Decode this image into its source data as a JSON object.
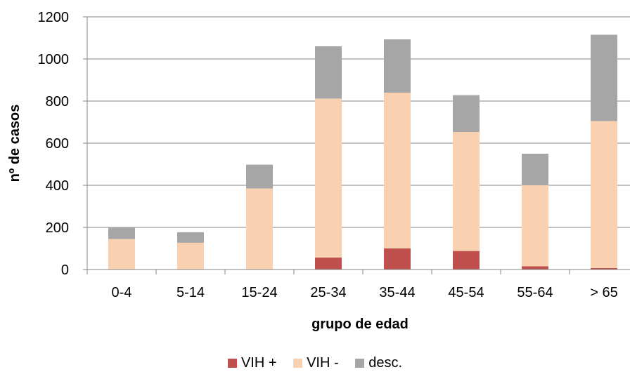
{
  "chart_data": {
    "type": "bar",
    "stacked": true,
    "title": "",
    "xlabel": "grupo de edad",
    "ylabel": "nº de casos",
    "ylim": [
      0,
      1200
    ],
    "yticks": [
      "0",
      "200",
      "400",
      "600",
      "800",
      "1000",
      "1200"
    ],
    "grid": true,
    "legend_position": "bottom",
    "categories": [
      "0-4",
      "5-14",
      "15-24",
      "25-34",
      "35-44",
      "45-54",
      "55-64",
      "> 65"
    ],
    "series": [
      {
        "name": "VIH +",
        "color": "#c0504d",
        "values": [
          0,
          0,
          0,
          57,
          100,
          88,
          15,
          7
        ]
      },
      {
        "name": "VIH -",
        "color": "#fad1b0",
        "values": [
          145,
          127,
          385,
          755,
          740,
          565,
          385,
          698
        ]
      },
      {
        "name": "desc.",
        "color": "#a6a6a6",
        "values": [
          57,
          50,
          113,
          248,
          253,
          175,
          150,
          410
        ]
      }
    ]
  }
}
